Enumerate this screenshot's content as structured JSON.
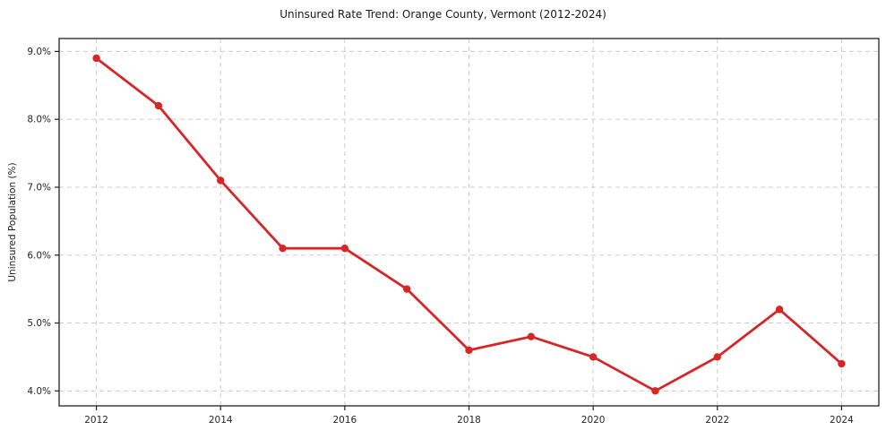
{
  "page": {
    "background": "#ffffff"
  },
  "chart_data": {
    "type": "line",
    "title": "Uninsured Rate Trend: Orange County, Vermont (2012-2024)",
    "xlabel": "",
    "ylabel": "Uninsured Population (%)",
    "x": [
      2012,
      2013,
      2014,
      2015,
      2016,
      2017,
      2018,
      2019,
      2020,
      2021,
      2022,
      2023,
      2024
    ],
    "values": [
      8.9,
      8.2,
      7.1,
      6.1,
      6.1,
      5.5,
      4.6,
      4.8,
      4.5,
      4.0,
      4.5,
      5.2,
      4.4
    ],
    "xlim": [
      2011.4,
      2024.6
    ],
    "ylim": [
      3.78,
      9.19
    ],
    "xticks": {
      "values": [
        2012,
        2014,
        2016,
        2018,
        2020,
        2022,
        2024
      ],
      "labels": [
        "2012",
        "2014",
        "2016",
        "2018",
        "2020",
        "2022",
        "2024"
      ]
    },
    "yticks": {
      "values": [
        4,
        5,
        6,
        7,
        8,
        9
      ],
      "labels": [
        "4.0%",
        "5.0%",
        "6.0%",
        "7.0%",
        "8.0%",
        "9.0%"
      ]
    },
    "legend": {
      "visible": false
    },
    "grid": {
      "visible": true,
      "style": "dashed",
      "color": "#cccccc"
    },
    "style": {
      "line_color": "#d62728",
      "marker_color": "#d62728",
      "marker_shape": "circle",
      "border_color": "#222222",
      "tick_color": "#222222"
    }
  }
}
